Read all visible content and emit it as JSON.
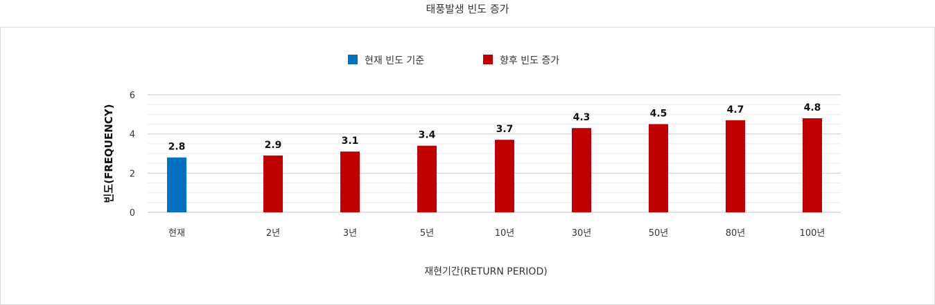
{
  "page": {
    "title": "태풍발생 빈도 증가"
  },
  "chart_data": {
    "type": "bar",
    "title": "태풍발생 빈도 증가",
    "categories": [
      "현재",
      "2년",
      "3년",
      "5년",
      "10년",
      "30년",
      "50년",
      "80년",
      "100년"
    ],
    "values": [
      2.8,
      2.9,
      3.1,
      3.4,
      3.7,
      4.3,
      4.5,
      4.7,
      4.8
    ],
    "series": [
      {
        "name": "현재 빈도 기준",
        "color": "#0070c0",
        "categories": [
          "현재"
        ]
      },
      {
        "name": "향후 빈도 증가",
        "color": "#c00000",
        "categories": [
          "2년",
          "3년",
          "5년",
          "10년",
          "30년",
          "50년",
          "80년",
          "100년"
        ]
      }
    ],
    "xlabel": "재현기간(RETURN PERIOD)",
    "ylabel": "빈도(FREQUENCY)",
    "ylim": [
      0,
      6
    ],
    "yticks": [
      0,
      2,
      4,
      6
    ],
    "grid": true,
    "legend": "top-center"
  }
}
